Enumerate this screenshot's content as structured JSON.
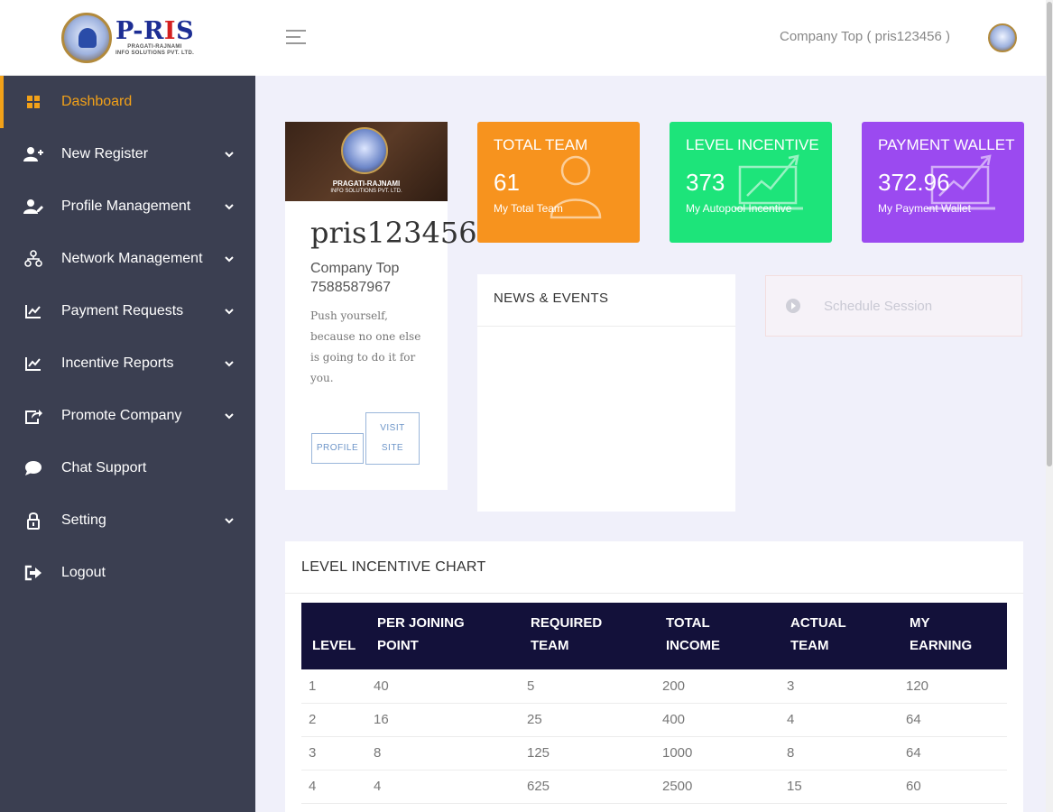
{
  "brand": {
    "name_left": "P-R",
    "name_mid": "I",
    "name_right": "S",
    "sub1": "PRAGATI-RAJNAMI",
    "sub2": "INFO SOLUTIONS PVT. LTD."
  },
  "sidebar": {
    "items": [
      {
        "label": "Dashboard",
        "icon": "dashboard-icon",
        "chevron": false
      },
      {
        "label": "New Register",
        "icon": "user-plus-icon",
        "chevron": true
      },
      {
        "label": "Profile Management",
        "icon": "user-edit-icon",
        "chevron": true
      },
      {
        "label": "Network Management",
        "icon": "network-icon",
        "chevron": true
      },
      {
        "label": "Payment Requests",
        "icon": "chart-icon",
        "chevron": true
      },
      {
        "label": "Incentive Reports",
        "icon": "chart-icon",
        "chevron": true
      },
      {
        "label": "Promote Company",
        "icon": "share-icon",
        "chevron": true
      },
      {
        "label": "Chat Support",
        "icon": "chat-icon",
        "chevron": false
      },
      {
        "label": "Setting",
        "icon": "lock-icon",
        "chevron": true
      },
      {
        "label": "Logout",
        "icon": "logout-icon",
        "chevron": false
      }
    ]
  },
  "topbar": {
    "user_label": "Company Top ( pris123456 )"
  },
  "profile": {
    "banner_line1": "PRAGATI-RAJNAMI",
    "banner_line2": "INFO SOLUTIONS PVT. LTD.",
    "username": "pris123456",
    "company": "Company Top",
    "phone": "7588587967",
    "quote": "Push yourself, because no one else is going to do it for you.",
    "profile_btn": "PROFILE",
    "visit_btn_line1": "VISIT",
    "visit_btn_line2": "SITE"
  },
  "stats": [
    {
      "title": "TOTAL TEAM",
      "value": "61",
      "label": "My Total Team",
      "color": "#f7931e"
    },
    {
      "title": "LEVEL INCENTIVE",
      "value": "373",
      "label": "My Autopool Incentive",
      "color": "#1de47a"
    },
    {
      "title": "PAYMENT WALLET",
      "value": "372.96",
      "label": "My Payment Wallet",
      "color": "#9b4af0"
    }
  ],
  "news": {
    "title": "NEWS & EVENTS"
  },
  "schedule": {
    "label": "Schedule Session"
  },
  "level_chart": {
    "title": "LEVEL INCENTIVE CHART",
    "headers": [
      {
        "l1": "",
        "l2": "LEVEL"
      },
      {
        "l1": "PER JOINING",
        "l2": "POINT"
      },
      {
        "l1": "REQUIRED",
        "l2": "TEAM"
      },
      {
        "l1": "TOTAL",
        "l2": "INCOME"
      },
      {
        "l1": "ACTUAL",
        "l2": "TEAM"
      },
      {
        "l1": "MY",
        "l2": "EARNING"
      }
    ],
    "rows": [
      [
        "1",
        "40",
        "5",
        "200",
        "3",
        "120"
      ],
      [
        "2",
        "16",
        "25",
        "400",
        "4",
        "64"
      ],
      [
        "3",
        "8",
        "125",
        "1000",
        "8",
        "64"
      ],
      [
        "4",
        "4",
        "625",
        "2500",
        "15",
        "60"
      ]
    ]
  }
}
